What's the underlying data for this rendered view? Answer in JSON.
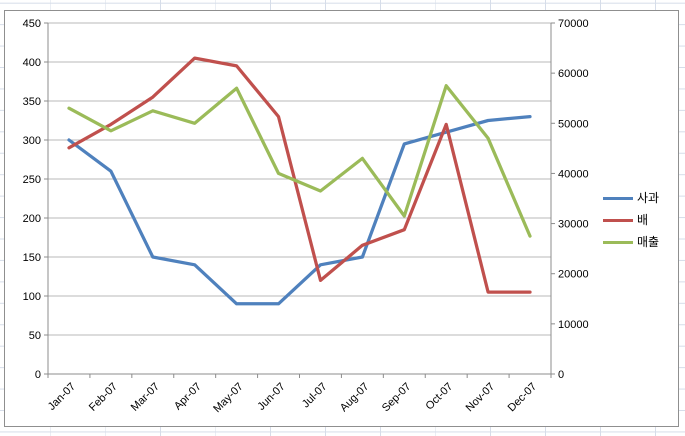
{
  "chart_data": {
    "type": "line",
    "title": "",
    "categories": [
      "Jan-07",
      "Feb-07",
      "Mar-07",
      "Apr-07",
      "May-07",
      "Jun-07",
      "Jul-07",
      "Aug-07",
      "Sep-07",
      "Oct-07",
      "Nov-07",
      "Dec-07"
    ],
    "series": [
      {
        "name": "사과",
        "axis": "left",
        "color": "#4F81BD",
        "values": [
          300,
          260,
          150,
          140,
          90,
          90,
          140,
          150,
          295,
          310,
          325,
          330
        ]
      },
      {
        "name": "배",
        "axis": "left",
        "color": "#C0504D",
        "values": [
          290,
          320,
          355,
          405,
          395,
          330,
          120,
          165,
          185,
          320,
          105,
          105
        ]
      },
      {
        "name": "매출",
        "axis": "right",
        "color": "#9BBB59",
        "values": [
          53000,
          48500,
          52500,
          50000,
          57000,
          40000,
          36500,
          43000,
          31500,
          57500,
          47000,
          27500
        ]
      }
    ],
    "left_axis": {
      "min": 0,
      "max": 450,
      "step": 50,
      "tick_labels": [
        "0",
        "50",
        "100",
        "150",
        "200",
        "250",
        "300",
        "350",
        "400",
        "450"
      ]
    },
    "right_axis": {
      "min": 0,
      "max": 70000,
      "step": 10000,
      "tick_labels": [
        "0",
        "10000",
        "20000",
        "30000",
        "40000",
        "50000",
        "60000",
        "70000"
      ]
    },
    "x_axis": {
      "label_rotation_deg": -45
    },
    "grid": true,
    "legend_position": "right",
    "legend_entries": [
      "사과",
      "배",
      "매출"
    ]
  },
  "colors": {
    "series_apple": "#4F81BD",
    "series_pear": "#C0504D",
    "series_revenue": "#9BBB59",
    "plot_gridline": "#b8b8b8",
    "axis_line": "#8c8c8c",
    "chart_border": "#8f8f8f",
    "sheet_gridline": "#d6dde9",
    "text": "#000000"
  }
}
